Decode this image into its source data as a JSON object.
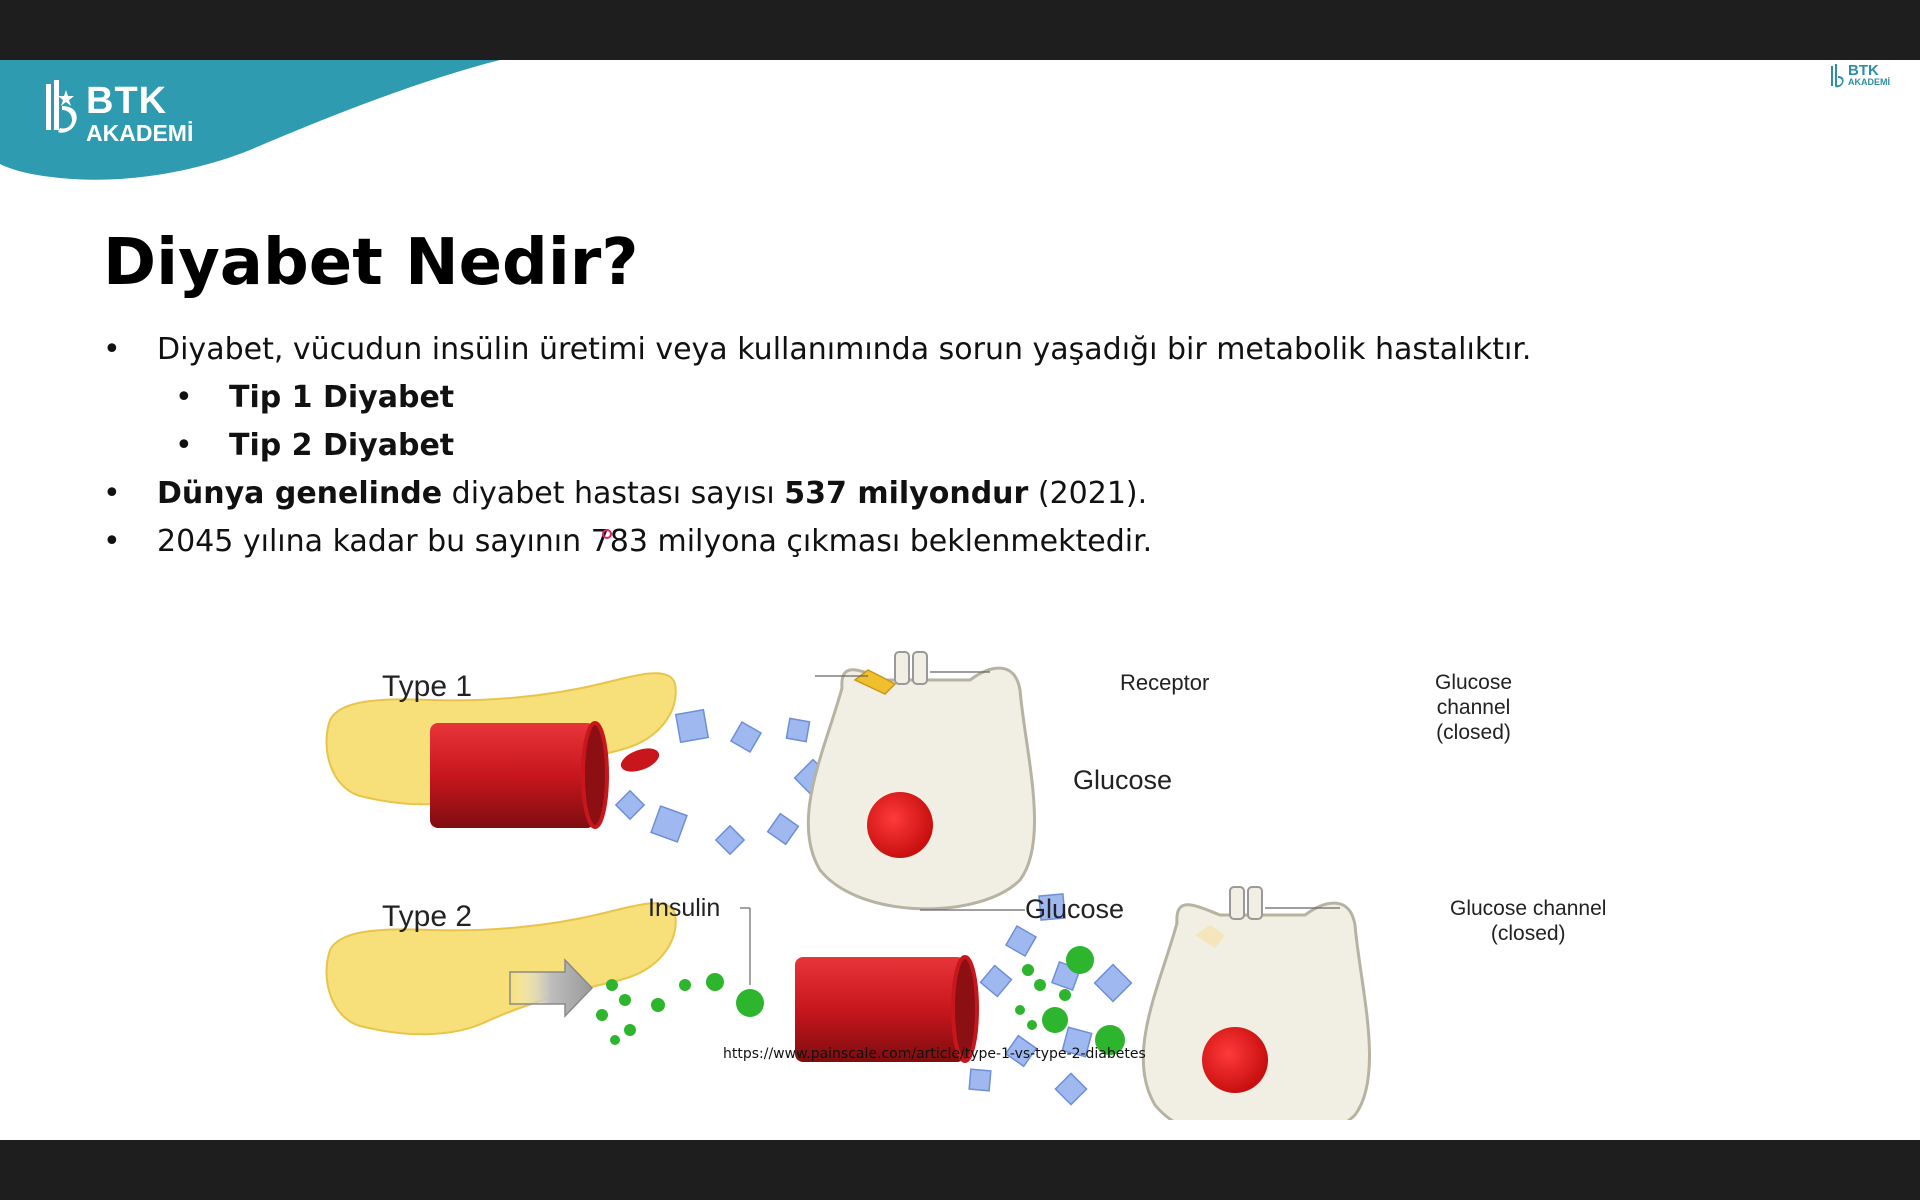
{
  "logo": {
    "line1": "BTK",
    "line2": "AKADEMİ"
  },
  "logo_small": {
    "line1": "BTK",
    "line2": "AKADEMİ"
  },
  "slide": {
    "title": "Diyabet Nedir?",
    "bullets": [
      {
        "level": 1,
        "text": "Diyabet, vücudun insülin üretimi veya kullanımında sorun yaşadığı bir metabolik hastalıktır."
      },
      {
        "level": 2,
        "text": "Tip 1 Diyabet"
      },
      {
        "level": 2,
        "text": "Tip 2 Diyabet"
      },
      {
        "level": 1,
        "bold1": "Dünya genelinde",
        "mid": " diyabet hastası sayısı ",
        "bold2": "537 milyondur",
        "end": " (2021)."
      },
      {
        "level": 1,
        "text": "2045 yılına kadar bu sayının 783 milyona çıkması beklenmektedir."
      }
    ],
    "bullet_char": "•"
  },
  "figure": {
    "type1": "Type 1",
    "type2": "Type 2",
    "receptor": "Receptor",
    "glucose_top": "Glucose",
    "glucose_bottom": "Glucose",
    "insulin": "Insulin",
    "gc_top_1": "Glucose",
    "gc_top_2": "channel",
    "gc_top_3": "(closed)",
    "gc_bottom_1": "Glucose channel",
    "gc_bottom_2": "(closed)"
  },
  "source_url": "https://www.painscale.com/article/type-1-vs-type-2-diabetes",
  "colors": {
    "brand_teal": "#2f9bb0",
    "blood_red": "#c8161d",
    "pancreas": "#f7df7a",
    "insulin_green": "#2db52d",
    "glucose_blue": "#9fb8ef"
  }
}
